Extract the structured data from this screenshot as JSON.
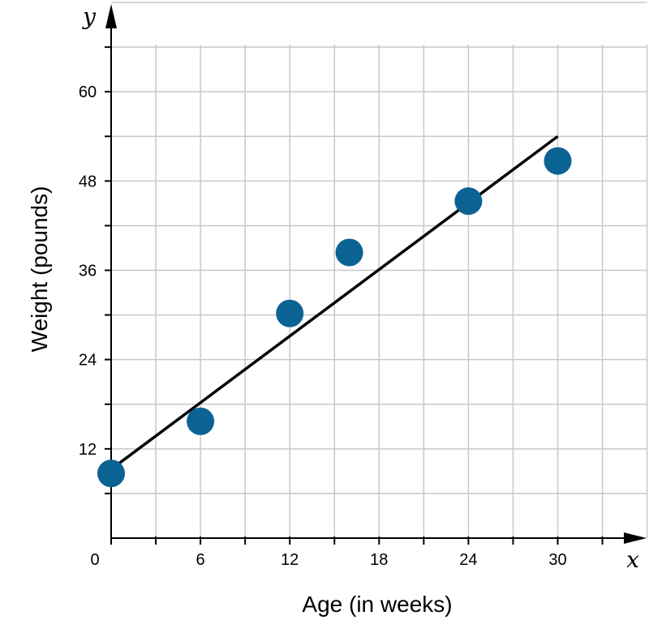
{
  "chart_data": {
    "type": "scatter",
    "xlabel": "Age (in weeks)",
    "ylabel": "Weight (pounds)",
    "x_var": "x",
    "y_var": "y",
    "xlim": [
      0,
      36
    ],
    "ylim": [
      0,
      72
    ],
    "x_grid_step": 3,
    "y_grid_step": 6,
    "x_tick_labels": [
      "0",
      "6",
      "12",
      "18",
      "24",
      "30"
    ],
    "y_tick_labels": [
      "12",
      "24",
      "36",
      "48",
      "60"
    ],
    "grid": true,
    "points": [
      {
        "x": 0,
        "y": 8.7
      },
      {
        "x": 6,
        "y": 15.7
      },
      {
        "x": 12,
        "y": 30.2
      },
      {
        "x": 16,
        "y": 38.4
      },
      {
        "x": 24,
        "y": 45.3
      },
      {
        "x": 30,
        "y": 50.7
      }
    ],
    "trend_line": {
      "x": [
        0.5,
        30
      ],
      "y": [
        10,
        54
      ]
    },
    "colors": {
      "points": "#0b6394",
      "line": "#000000",
      "grid": "#c8c8c8",
      "axis": "#000000"
    }
  }
}
